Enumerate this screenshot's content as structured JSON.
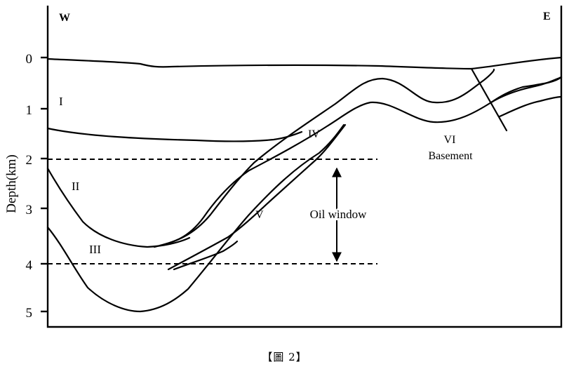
{
  "directions": {
    "west": "W",
    "east": "E"
  },
  "axis": {
    "ylabel": "Depth(km)",
    "ticks": [
      "0",
      "1",
      "2",
      "3",
      "4",
      "5"
    ]
  },
  "units": [
    "I",
    "II",
    "III",
    "IV",
    "V",
    "VI"
  ],
  "basement_label": "Basement",
  "oil_window_label": "Oil window",
  "caption": "【圖 2】"
}
